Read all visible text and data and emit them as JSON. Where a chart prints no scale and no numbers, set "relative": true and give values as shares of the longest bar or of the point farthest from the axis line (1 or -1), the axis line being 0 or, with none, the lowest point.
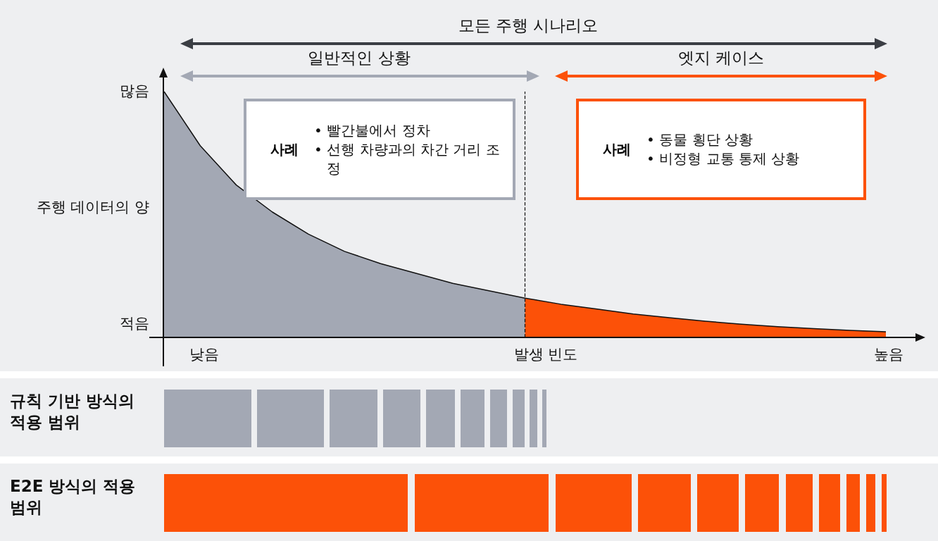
{
  "chart_data": {
    "type": "area",
    "relative": true,
    "xlabel": "발생 빈도",
    "ylabel": "주행 데이터의 양",
    "categories": [
      null,
      null,
      null,
      null,
      null,
      null,
      null,
      null,
      null,
      null,
      null,
      null,
      null,
      null,
      null,
      null,
      null,
      null,
      null,
      null,
      null
    ],
    "series": [
      {
        "color": "#a3a8b4",
        "values": [
          1,
          0.78,
          0.62,
          0.51,
          0.42,
          0.35,
          0.3,
          0.26,
          0.22,
          0.19,
          0.16,
          null,
          null,
          null,
          null,
          null,
          null,
          null,
          null,
          null,
          null
        ]
      },
      {
        "color": "#fc5108",
        "values": [
          null,
          null,
          null,
          null,
          null,
          null,
          null,
          null,
          null,
          null,
          0.16,
          0.135,
          0.115,
          0.095,
          0.08,
          0.066,
          0.054,
          0.044,
          0.036,
          0.029,
          0.023
        ]
      }
    ],
    "annotations": [
      "모든 주행 시나리오",
      "일반적인 상황",
      "엣지 케이스",
      "사례",
      "• 빨간불에서 정차",
      "• 선행 차량과의 차간 거리 조정",
      "사례",
      "• 동물 횡단 상황",
      "• 비정형 교통 통제 상황",
      "많음",
      "적음",
      "낮음",
      "높음",
      "규칙 기반 방식의 적용 범위",
      "E2E 방식의 적용 범위"
    ],
    "grid": false,
    "marker": "none",
    "line_style": "solid"
  }
}
